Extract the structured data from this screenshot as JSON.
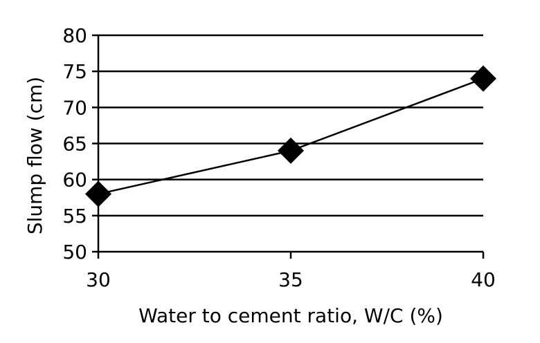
{
  "chart_data": {
    "type": "line",
    "x": [
      30,
      35,
      40
    ],
    "series": [
      {
        "values": [
          58,
          64,
          74
        ],
        "marker": "diamond",
        "color": "#000000"
      }
    ],
    "xlabel": "Water to cement ratio, W/C (%)",
    "ylabel": "Slump flow (cm)",
    "xlim": [
      30,
      40
    ],
    "ylim": [
      50,
      80
    ],
    "xticks": [
      "30",
      "35",
      "40"
    ],
    "yticks": [
      "50",
      "55",
      "60",
      "65",
      "70",
      "75",
      "80"
    ],
    "grid": "horizontal",
    "legend": "none"
  }
}
